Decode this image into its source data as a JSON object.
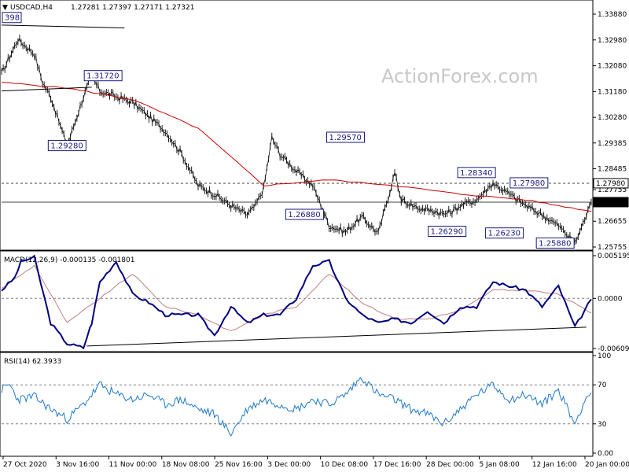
{
  "header": {
    "symbol": "USDCAD,H4",
    "ohlc": "1.27281 1.27397 1.27171 1.27321"
  },
  "watermark": "ActionForex.com",
  "colors": {
    "price_bars": "#1a1a1a",
    "moving_average": "#cc0000",
    "macd_line": "#000080",
    "macd_signal": "#c08080",
    "rsi_line": "#1e78c8",
    "annotation": "#1a1a80",
    "current_price_tag": "#000000",
    "level_tag": "#ffffff"
  },
  "chart_data": [
    {
      "type": "line",
      "panel": "price",
      "title": "USDCAD,H4",
      "ylim": [
        1.25755,
        1.3388
      ],
      "y_ticks": [
        "1.33880",
        "1.32980",
        "1.32080",
        "1.31180",
        "1.30280",
        "1.29385",
        "1.28485",
        "1.27755",
        "1.26655",
        "1.25755"
      ],
      "x_ticks": [
        "27 Oct 2020",
        "3 Nov 16:00",
        "11 Nov 00:00",
        "18 Nov 08:00",
        "25 Nov 16:00",
        "3 Dec 00:00",
        "10 Dec 08:00",
        "17 Dec 16:00",
        "28 Dec 00:00",
        "5 Jan 08:00",
        "12 Jan 16:00",
        "20 Jan 00:00"
      ],
      "series": [
        {
          "x": [
            0,
            10,
            20,
            25,
            30,
            40,
            50,
            55,
            60,
            70,
            80,
            90,
            100,
            110,
            120,
            130,
            140,
            150,
            155,
            160,
            165,
            170,
            180,
            190,
            200,
            210,
            220,
            230,
            240,
            244
          ],
          "values": [
            1.318,
            1.33,
            1.325,
            1.315,
            1.31,
            1.2928,
            1.31,
            1.3172,
            1.312,
            1.31,
            1.308,
            1.303,
            1.298,
            1.29,
            1.279,
            1.276,
            1.272,
            1.2688,
            1.272,
            1.278,
            1.2957,
            1.29,
            1.284,
            1.279,
            1.265,
            1.2629,
            1.268,
            1.2623,
            1.2834,
            1.274
          ]
        },
        {
          "x": [
            244,
            255,
            265,
            270,
            275,
            280,
            290,
            300,
            310,
            320,
            330,
            340,
            350,
            358,
            360
          ],
          "values": [
            1.274,
            1.271,
            1.27,
            1.269,
            1.27,
            1.272,
            1.274,
            1.2798,
            1.276,
            1.272,
            1.2688,
            1.265,
            1.2588,
            1.27,
            1.2732
          ]
        }
      ],
      "ma": {
        "x": [
          0,
          40,
          80,
          120,
          160,
          200,
          240,
          280,
          320,
          360
        ],
        "values": [
          1.315,
          1.313,
          1.309,
          1.299,
          1.279,
          1.281,
          1.279,
          1.276,
          1.274,
          1.27
        ]
      },
      "support_line": {
        "x": [
          0,
          55
        ],
        "values": [
          1.312,
          1.3133
        ]
      },
      "resistance_line": {
        "x": [
          0,
          75
        ],
        "values": [
          1.335,
          1.334
        ]
      },
      "level_lines": [
        {
          "value": 1.2798,
          "label": "1.27980",
          "style": "dashed"
        },
        {
          "value": 1.27321,
          "label": "1.27321",
          "style": "solid"
        }
      ],
      "annotations": [
        {
          "label": "1.31720",
          "x": 62,
          "value": 1.3172
        },
        {
          "label": "1.29280",
          "x": 40,
          "value": 1.2928
        },
        {
          "label": "1.26880",
          "x": 185,
          "value": 1.2688
        },
        {
          "label": "1.29570",
          "x": 210,
          "value": 1.2957
        },
        {
          "label": "1.26290",
          "x": 272,
          "value": 1.2629
        },
        {
          "label": "1.28340",
          "x": 290,
          "value": 1.2834
        },
        {
          "label": "1.27980",
          "x": 322,
          "value": 1.2798
        },
        {
          "label": "1.26230",
          "x": 307,
          "value": 1.2623
        },
        {
          "label": "1.25880",
          "x": 338,
          "value": 1.2588
        },
        {
          "label": "398",
          "x": 2,
          "value": 1.3375
        }
      ],
      "xlim": [
        0,
        360
      ]
    },
    {
      "type": "line",
      "panel": "macd",
      "title": "MACD(12,26,9) -0.000135 -0.001801",
      "ylim": [
        -0.006093,
        0.005195
      ],
      "y_ticks": [
        "0.005195",
        "0.0000",
        "-0.006093"
      ],
      "series": [
        {
          "name": "MACD",
          "x": [
            0,
            8,
            12,
            20,
            30,
            40,
            50,
            55,
            60,
            70,
            80,
            90,
            100,
            110,
            120,
            130,
            140,
            150,
            160,
            170,
            180,
            190,
            200,
            210,
            220,
            230,
            240,
            250,
            260,
            270,
            280,
            290,
            300,
            310,
            320,
            330,
            340,
            350,
            360
          ],
          "values": [
            0.001,
            0.0025,
            0.0045,
            0.005,
            -0.003,
            -0.0055,
            -0.006,
            -0.003,
            0.002,
            0.0045,
            0.0005,
            -0.0005,
            -0.002,
            -0.002,
            -0.002,
            -0.0045,
            -0.001,
            -0.003,
            -0.002,
            -0.002,
            0.0,
            0.004,
            0.0045,
            0.0,
            -0.002,
            -0.003,
            -0.0025,
            -0.003,
            -0.0015,
            -0.003,
            -0.001,
            -0.001,
            0.002,
            0.0015,
            0.001,
            -0.001,
            0.0015,
            -0.0035,
            -0.0001
          ]
        },
        {
          "name": "Signal",
          "x": [
            0,
            20,
            40,
            60,
            80,
            100,
            120,
            140,
            160,
            180,
            200,
            220,
            240,
            260,
            280,
            300,
            320,
            340,
            360
          ],
          "values": [
            0.0012,
            0.004,
            -0.003,
            0.0,
            0.003,
            -0.001,
            -0.002,
            -0.004,
            -0.002,
            -0.001,
            0.003,
            -0.0005,
            -0.0025,
            -0.0025,
            -0.0015,
            0.001,
            0.001,
            0.0005,
            -0.0018
          ]
        }
      ],
      "trendline": {
        "x": [
          52,
          357
        ],
        "values": [
          -0.0058,
          -0.0035
        ]
      },
      "xlim": [
        0,
        360
      ]
    },
    {
      "type": "line",
      "panel": "rsi",
      "title": "RSI(14) 62.3933",
      "ylim": [
        0,
        100
      ],
      "y_ticks": [
        "100",
        "70",
        "30",
        "0.00"
      ],
      "levels": [
        70,
        30
      ],
      "series": [
        {
          "name": "RSI",
          "x": [
            0,
            5,
            10,
            20,
            30,
            40,
            50,
            60,
            70,
            80,
            90,
            100,
            110,
            120,
            130,
            140,
            150,
            160,
            170,
            180,
            190,
            200,
            210,
            220,
            230,
            240,
            250,
            260,
            270,
            280,
            290,
            300,
            310,
            320,
            330,
            340,
            350,
            356,
            360
          ],
          "values": [
            65,
            70,
            55,
            58,
            45,
            35,
            50,
            70,
            60,
            55,
            60,
            50,
            55,
            45,
            40,
            20,
            45,
            55,
            50,
            45,
            55,
            50,
            60,
            78,
            60,
            55,
            45,
            40,
            30,
            45,
            60,
            70,
            55,
            60,
            50,
            65,
            30,
            55,
            62
          ]
        }
      ],
      "xlim": [
        0,
        360
      ]
    }
  ]
}
